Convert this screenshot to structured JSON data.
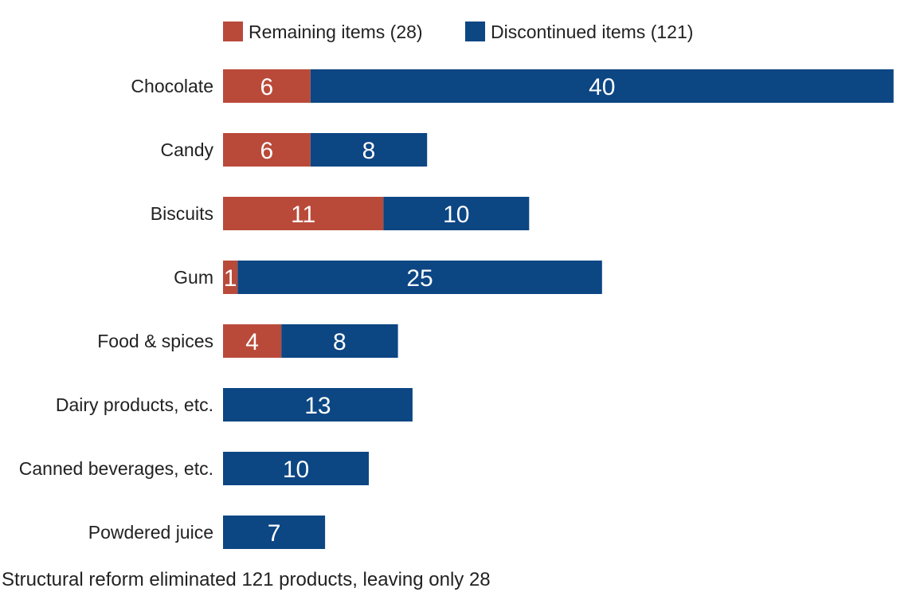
{
  "chart_data": {
    "type": "bar",
    "orientation": "horizontal",
    "stacked": true,
    "categories": [
      "Chocolate",
      "Candy",
      "Biscuits",
      "Gum",
      "Food & spices",
      "Dairy products, etc.",
      "Canned beverages, etc.",
      "Powdered juice"
    ],
    "series": [
      {
        "name": "Remaining items (28)",
        "color": "#b94a3a",
        "values": [
          6,
          6,
          11,
          1,
          4,
          0,
          0,
          0
        ]
      },
      {
        "name": "Discontinued items (121)",
        "color": "#0c4683",
        "values": [
          40,
          8,
          10,
          25,
          8,
          13,
          10,
          7
        ]
      }
    ],
    "caption": "Structural reform eliminated 121 products, leaving only 28",
    "legend_position": "top",
    "grid": false,
    "xlim": [
      0,
      46
    ]
  }
}
